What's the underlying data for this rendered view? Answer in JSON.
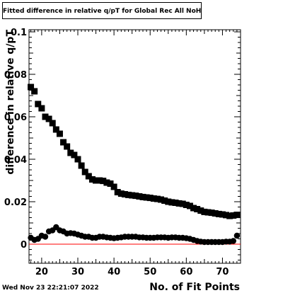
{
  "chart_data": {
    "type": "scatter",
    "title": "Fitted difference in relative q/pT  for Global Rec All NoHits",
    "xlabel": "No. of Fit Points",
    "ylabel": "difference in relative q/pT",
    "xlim": [
      16.5,
      75
    ],
    "ylim": [
      -0.009,
      0.101
    ],
    "x_ticks": [
      20,
      30,
      40,
      50,
      60,
      70
    ],
    "y_ticks": [
      0,
      0.02,
      0.04,
      0.06,
      0.08,
      0.1
    ],
    "y_tick_labels": [
      "0",
      "0.02",
      "0.04",
      "0.06",
      "0.08",
      "0.1"
    ],
    "reference_line": {
      "y": 0,
      "color": "#ff0000"
    },
    "grid": false,
    "legend": "none",
    "series": [
      {
        "marker": "square",
        "color": "#000000",
        "x": [
          17,
          18,
          19,
          20,
          21,
          22,
          23,
          24,
          25,
          26,
          27,
          28,
          29,
          30,
          31,
          32,
          33,
          34,
          35,
          36,
          37,
          38,
          39,
          40,
          41,
          42,
          43,
          44,
          45,
          46,
          47,
          48,
          49,
          50,
          51,
          52,
          53,
          54,
          55,
          56,
          57,
          58,
          59,
          60,
          61,
          62,
          63,
          64,
          65,
          66,
          67,
          68,
          69,
          70,
          71,
          72,
          73,
          74
        ],
        "y": [
          0.074,
          0.072,
          0.066,
          0.064,
          0.06,
          0.059,
          0.057,
          0.054,
          0.052,
          0.048,
          0.046,
          0.043,
          0.042,
          0.04,
          0.037,
          0.034,
          0.032,
          0.0305,
          0.03,
          0.03,
          0.0298,
          0.029,
          0.0285,
          0.027,
          0.0245,
          0.0238,
          0.0235,
          0.0232,
          0.023,
          0.0228,
          0.0225,
          0.0222,
          0.022,
          0.0218,
          0.0215,
          0.0213,
          0.021,
          0.0205,
          0.02,
          0.0197,
          0.0195,
          0.0192,
          0.019,
          0.0185,
          0.018,
          0.017,
          0.0165,
          0.0158,
          0.0152,
          0.015,
          0.0148,
          0.0145,
          0.0142,
          0.014,
          0.0137,
          0.0133,
          0.0135,
          0.0138
        ]
      },
      {
        "marker": "circle",
        "color": "#000000",
        "x": [
          17,
          18,
          19,
          20,
          21,
          22,
          23,
          24,
          25,
          26,
          27,
          28,
          29,
          30,
          31,
          32,
          33,
          34,
          35,
          36,
          37,
          38,
          39,
          40,
          41,
          42,
          43,
          44,
          45,
          46,
          47,
          48,
          49,
          50,
          51,
          52,
          53,
          54,
          55,
          56,
          57,
          58,
          59,
          60,
          61,
          62,
          63,
          64,
          65,
          66,
          67,
          68,
          69,
          70,
          71,
          72,
          73,
          74
        ],
        "y": [
          0.003,
          0.002,
          0.0025,
          0.004,
          0.0035,
          0.006,
          0.0065,
          0.008,
          0.0065,
          0.006,
          0.005,
          0.0052,
          0.005,
          0.0045,
          0.004,
          0.0035,
          0.0035,
          0.003,
          0.003,
          0.0035,
          0.0035,
          0.0032,
          0.003,
          0.0028,
          0.003,
          0.0032,
          0.0035,
          0.0035,
          0.0035,
          0.0035,
          0.0032,
          0.0032,
          0.003,
          0.003,
          0.003,
          0.0032,
          0.0032,
          0.0032,
          0.003,
          0.0032,
          0.0032,
          0.003,
          0.003,
          0.0028,
          0.0025,
          0.002,
          0.0015,
          0.0012,
          0.001,
          0.001,
          0.001,
          0.001,
          0.001,
          0.001,
          0.0012,
          0.0012,
          0.0015,
          0.004
        ]
      }
    ]
  },
  "footer": {
    "timestamp": "Wed Nov 23 22:21:07 2022"
  }
}
